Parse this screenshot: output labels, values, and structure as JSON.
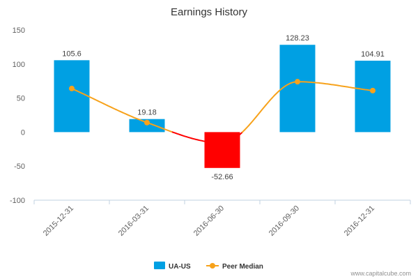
{
  "chart_data": {
    "type": "bar",
    "title": "Earnings History",
    "categories": [
      "2015-12-31",
      "2016-03-31",
      "2016-06-30",
      "2016-09-30",
      "2016-12-31"
    ],
    "series": [
      {
        "name": "UA-US",
        "type": "bar",
        "values": [
          105.6,
          19.18,
          -52.66,
          128.23,
          104.91
        ],
        "data_labels": [
          "105.6",
          "19.18",
          "-52.66",
          "128.23",
          "104.91"
        ],
        "color": "#00a0e3",
        "negative_color": "#ff0000"
      },
      {
        "name": "Peer Median",
        "type": "line",
        "values": [
          64,
          14,
          -16,
          74,
          61
        ],
        "color": "#f7a21b",
        "negative_color": "#ff0000"
      }
    ],
    "ylim": [
      -100,
      150
    ],
    "yticks": [
      -100,
      -50,
      0,
      50,
      100,
      150
    ],
    "grid": false,
    "legend_position": "bottom-center"
  },
  "credit": "www.capitalcube.com"
}
